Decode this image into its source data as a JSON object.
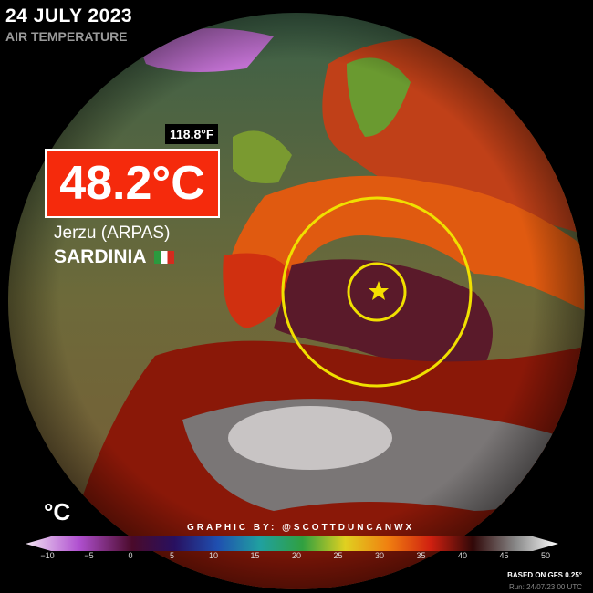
{
  "header": {
    "date": "24 JULY 2023",
    "variable": "AIR TEMPERATURE"
  },
  "callout": {
    "fahrenheit": "118.8°F",
    "celsius": "48.2°C",
    "station": "Jerzu (ARPAS)",
    "region": "SARDINIA",
    "flag": "italy-flag"
  },
  "legend": {
    "unit": "°C",
    "ticks": [
      "−10",
      "−5",
      "0",
      "5",
      "10",
      "15",
      "20",
      "25",
      "30",
      "35",
      "40",
      "45",
      "50"
    ],
    "colors": [
      "#f3e6f3",
      "#b050d0",
      "#4a0a2a",
      "#281060",
      "#1f4fb0",
      "#20a0a0",
      "#30a040",
      "#e0d020",
      "#f08010",
      "#d02010",
      "#300808",
      "#888888",
      "#ffffff"
    ]
  },
  "footer": {
    "credit": "GRAPHIC BY: @SCOTTDUNCANWX",
    "model": "BASED ON GFS 0.25°",
    "run": "Run: 24/07/23 00 UTC"
  },
  "marker": {
    "icon": "star-icon",
    "color": "#f5e000"
  }
}
